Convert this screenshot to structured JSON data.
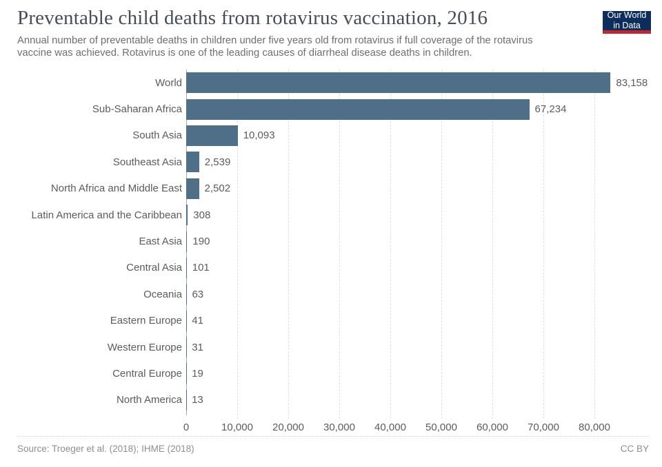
{
  "header": {
    "title": "Preventable child deaths from rotavirus vaccination, 2016",
    "subtitle_lines": [
      "Annual number of preventable deaths in children under five years old from rotavirus if full coverage of the rotavirus",
      "vaccine was achieved. Rotavirus is one of the leading causes of diarrheal disease deaths in children."
    ],
    "logo": {
      "line1": "Our World",
      "line2": "in Data",
      "bg_color": "#0d2e5c",
      "stripe_color": "#c0262d"
    }
  },
  "chart_data": {
    "type": "bar",
    "orientation": "horizontal",
    "title": "Preventable child deaths from rotavirus vaccination, 2016",
    "categories": [
      "World",
      "Sub-Saharan Africa",
      "South Asia",
      "Southeast Asia",
      "North Africa and Middle East",
      "Latin America and the Caribbean",
      "East Asia",
      "Central Asia",
      "Oceania",
      "Eastern Europe",
      "Western Europe",
      "Central Europe",
      "North America"
    ],
    "values": [
      83158,
      67234,
      10093,
      2539,
      2502,
      308,
      190,
      101,
      63,
      41,
      31,
      19,
      13
    ],
    "value_labels": [
      "83,158",
      "67,234",
      "10,093",
      "2,539",
      "2,502",
      "308",
      "190",
      "101",
      "63",
      "41",
      "31",
      "19",
      "13"
    ],
    "x_tick_values": [
      0,
      10000,
      20000,
      30000,
      40000,
      50000,
      60000,
      70000,
      80000
    ],
    "x_tick_labels": [
      "0",
      "10,000",
      "20,000",
      "30,000",
      "40,000",
      "50,000",
      "60,000",
      "70,000",
      "80,000"
    ],
    "xlim": [
      0,
      90500
    ],
    "xlabel": "",
    "ylabel": "",
    "grid": true,
    "legend": false,
    "bar_color": "#4e6f87",
    "gridline_color": "#dedede",
    "axis_line_color": "#a9a9a9"
  },
  "footer": {
    "source": "Source: Troeger et al. (2018); IHME (2018)",
    "license": "CC BY"
  }
}
